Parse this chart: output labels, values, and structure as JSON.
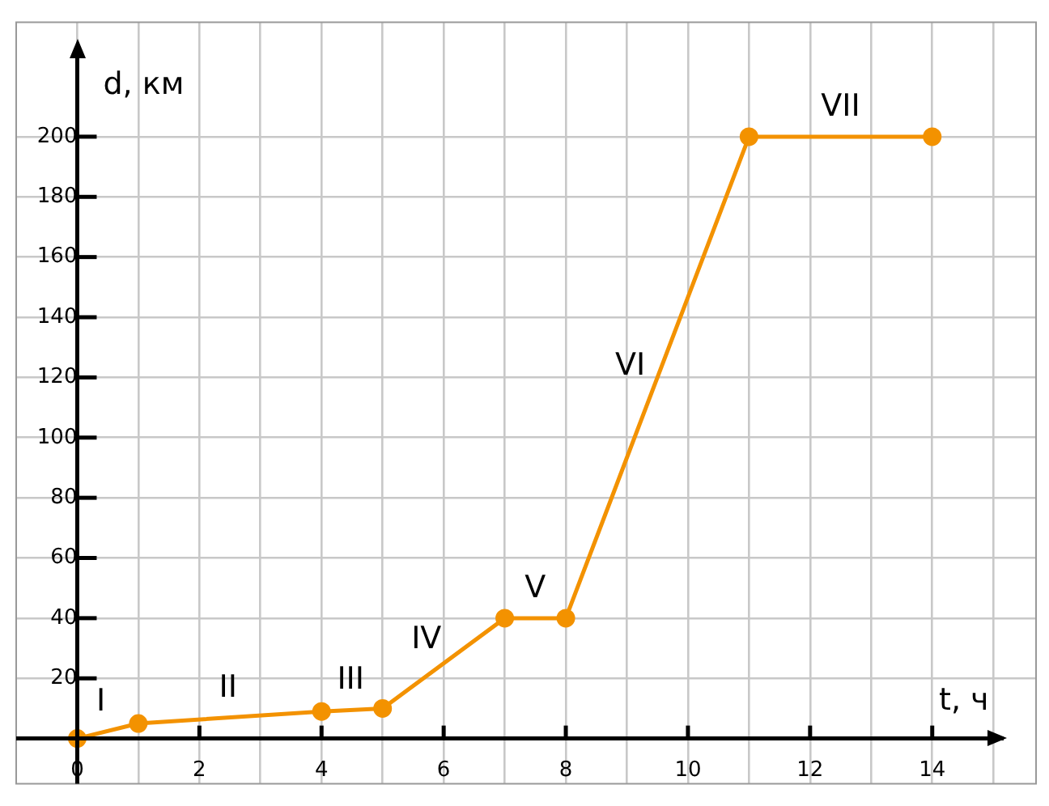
{
  "chart_data": {
    "type": "line",
    "xlabel": "t, ч",
    "ylabel": "d, км",
    "x": [
      0,
      1,
      4,
      5,
      7,
      8,
      11,
      14
    ],
    "series": [
      {
        "color": "#f39200",
        "values": [
          0,
          5,
          9,
          10,
          40,
          40,
          200,
          200
        ]
      }
    ],
    "xlim": [
      -1,
      15.7
    ],
    "ylim": [
      -15,
      238
    ],
    "xticks": [
      0,
      {
        "value": 1,
        "label": null
      },
      2,
      {
        "value": 3,
        "label": null
      },
      4,
      {
        "value": 5,
        "label": null
      },
      6,
      {
        "value": 7,
        "label": null
      },
      8,
      {
        "value": 9,
        "label": null
      },
      10,
      {
        "value": 11,
        "label": null
      },
      12,
      {
        "value": 13,
        "label": null
      },
      14,
      {
        "value": 15,
        "label": null
      }
    ],
    "yticks": [
      20,
      40,
      60,
      80,
      100,
      120,
      140,
      160,
      180,
      200
    ],
    "grid": true,
    "legend": false,
    "marker": "circle",
    "line_style": "solid",
    "annotations": [
      "I",
      "II",
      "III",
      "IV",
      "V",
      "VI",
      "VII"
    ]
  }
}
